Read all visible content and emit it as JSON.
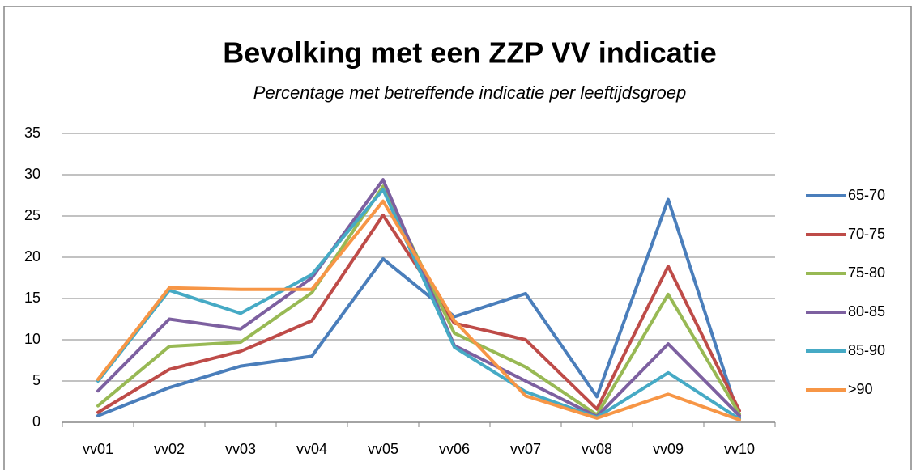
{
  "chart_data": {
    "type": "line",
    "title": "Bevolking met een ZZP VV indicatie",
    "subtitle": "Percentage met betreffende indicatie per leeftijdsgroep",
    "categories": [
      "vv01",
      "vv02",
      "vv03",
      "vv04",
      "vv05",
      "vv06",
      "vv07",
      "vv08",
      "vv09",
      "vv10"
    ],
    "series": [
      {
        "name": "65-70",
        "color": "#4a7ebb",
        "values": [
          0.8,
          4.2,
          6.8,
          8.0,
          19.8,
          12.8,
          15.6,
          3.1,
          27.0,
          0.5
        ]
      },
      {
        "name": "70-75",
        "color": "#be4b48",
        "values": [
          1.2,
          6.4,
          8.6,
          12.3,
          25.1,
          12.0,
          10.0,
          1.6,
          18.9,
          1.4
        ]
      },
      {
        "name": "75-80",
        "color": "#98b954",
        "values": [
          2.0,
          9.2,
          9.7,
          15.7,
          28.6,
          10.8,
          6.7,
          0.9,
          15.5,
          1.0
        ]
      },
      {
        "name": "80-85",
        "color": "#7d60a0",
        "values": [
          3.8,
          12.5,
          11.3,
          17.5,
          29.4,
          9.3,
          5.0,
          0.7,
          9.5,
          0.8
        ]
      },
      {
        "name": "85-90",
        "color": "#46aac5",
        "values": [
          5.0,
          16.0,
          13.2,
          17.9,
          28.2,
          9.1,
          3.7,
          0.6,
          6.0,
          0.4
        ]
      },
      {
        "name": ">90",
        "color": "#f79646",
        "values": [
          5.2,
          16.3,
          16.1,
          16.1,
          26.8,
          12.3,
          3.2,
          0.5,
          3.4,
          0.3
        ]
      }
    ],
    "ylim": [
      0,
      35
    ],
    "yticks": [
      0,
      5,
      10,
      15,
      20,
      25,
      30,
      35
    ],
    "grid": true,
    "legend": "right"
  }
}
